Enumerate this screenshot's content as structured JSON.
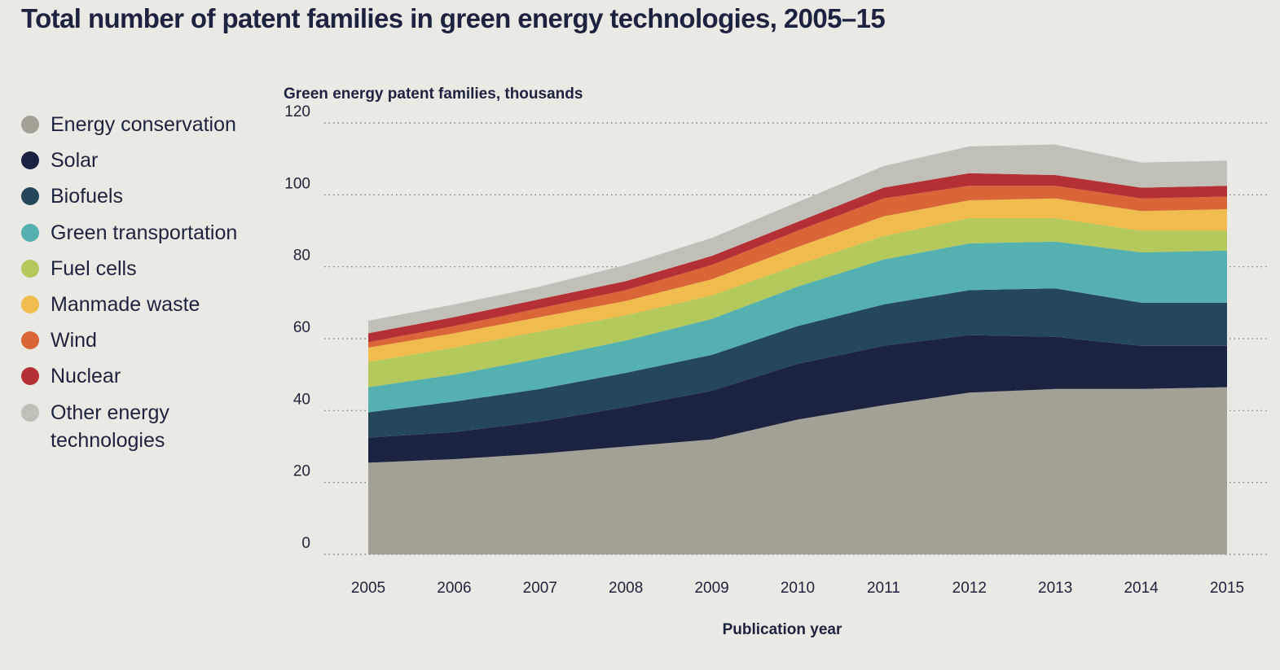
{
  "title": "Total number of patent families in green energy technologies, 2005–15",
  "chart_data": {
    "type": "area",
    "stacked": true,
    "title": "Total number of patent families in green energy technologies, 2005–15",
    "ylabel": "Green energy patent families, thousands",
    "xlabel": "Publication year",
    "x": [
      2005,
      2006,
      2007,
      2008,
      2009,
      2010,
      2011,
      2012,
      2013,
      2014,
      2015
    ],
    "y_ticks": [
      0,
      20,
      40,
      60,
      80,
      100,
      120
    ],
    "ylim": [
      0,
      120
    ],
    "grid": "horizontal dotted",
    "legend_position": "left",
    "series": [
      {
        "name": "Energy conservation",
        "color": "#a3a195",
        "values": [
          25.5,
          26.5,
          28,
          30,
          32,
          37.5,
          41.5,
          45,
          46,
          46,
          46.5
        ]
      },
      {
        "name": "Solar",
        "color": "#1c2340",
        "values": [
          7,
          7.5,
          9,
          11,
          13.5,
          15.5,
          16.5,
          16,
          14.5,
          12,
          11.5
        ]
      },
      {
        "name": "Biofuels",
        "color": "#24475a",
        "values": [
          7,
          8.5,
          9,
          9.5,
          10,
          10.5,
          11.5,
          12.5,
          13.5,
          12,
          12
        ]
      },
      {
        "name": "Green transportation",
        "color": "#55b0b0",
        "values": [
          7,
          7.5,
          8.5,
          9,
          10,
          11,
          12.5,
          13,
          13,
          14,
          14.5
        ]
      },
      {
        "name": "Fuel cells",
        "color": "#b3c95b",
        "values": [
          7,
          7.5,
          7.5,
          7,
          6.5,
          6,
          6.5,
          7,
          6.5,
          6,
          5.5
        ]
      },
      {
        "name": "Manmade waste",
        "color": "#efbc4d",
        "values": [
          4,
          4,
          4,
          4,
          4.5,
          5,
          5.5,
          5,
          5.5,
          5.5,
          6
        ]
      },
      {
        "name": "Wind",
        "color": "#da6537",
        "values": [
          1.5,
          2,
          2.5,
          3,
          4,
          4.5,
          5,
          4,
          3.5,
          3.5,
          3.5
        ]
      },
      {
        "name": "Nuclear",
        "color": "#b53035",
        "values": [
          2.5,
          2.5,
          2.5,
          2.5,
          2.5,
          2.5,
          3,
          3.5,
          3,
          3,
          3
        ]
      },
      {
        "name": "Other energy technologies",
        "color": "#c1c0b8",
        "values": [
          3.5,
          3.5,
          3.5,
          4.5,
          5,
          5.5,
          6,
          7.5,
          8.5,
          7,
          7
        ]
      }
    ]
  }
}
